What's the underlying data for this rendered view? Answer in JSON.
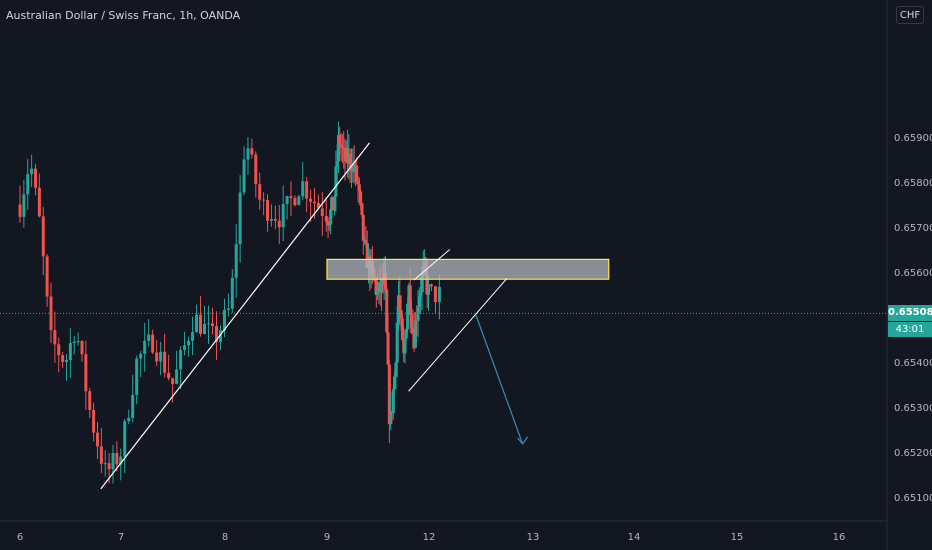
{
  "window": {
    "title": "Australian Dollar / Swiss Franc, 1h, OANDA",
    "currency_button": "CHF"
  },
  "price_axis": {
    "current_price": "0.65508",
    "countdown": "43:01"
  },
  "colors": {
    "background": "#131722",
    "up": "#26a69a",
    "down": "#ef5350",
    "drawing_line": "#ffffff",
    "zone_fill": "#b2b5be",
    "zone_border": "#ffeb3b",
    "arrow": "#3d8bb6",
    "axis_text": "#b2b5be"
  },
  "chart_data": {
    "type": "candlestick",
    "title": "Australian Dollar / Swiss Franc, 1h, OANDA",
    "y_ticks": [
      0.651,
      0.652,
      0.653,
      0.654,
      0.655,
      0.656,
      0.657,
      0.658,
      0.659
    ],
    "y_tick_labels": [
      "0.65100",
      "0.65200",
      "0.65300",
      "0.65400",
      "0.65500",
      "0.65600",
      "0.65700",
      "0.65800",
      "0.65900"
    ],
    "x_ticks": [
      6,
      7,
      8,
      9,
      12,
      13,
      14,
      15,
      16
    ],
    "x_tick_labels": [
      "6",
      "7",
      "8",
      "9",
      "12",
      "13",
      "14",
      "15",
      "16"
    ],
    "x_domain": [
      6,
      16
    ],
    "ylim": [
      0.6504,
      0.66
    ],
    "grid": false,
    "price_waypoints": [
      [
        6.0,
        0.6575
      ],
      [
        6.1,
        0.6585
      ],
      [
        6.2,
        0.657
      ],
      [
        6.3,
        0.6545
      ],
      [
        6.45,
        0.654
      ],
      [
        6.55,
        0.6548
      ],
      [
        6.7,
        0.6528
      ],
      [
        6.85,
        0.6515
      ],
      [
        7.0,
        0.652
      ],
      [
        7.15,
        0.654
      ],
      [
        7.3,
        0.6545
      ],
      [
        7.5,
        0.6535
      ],
      [
        7.7,
        0.655
      ],
      [
        7.9,
        0.6545
      ],
      [
        8.05,
        0.6552
      ],
      [
        8.2,
        0.659
      ],
      [
        8.35,
        0.6575
      ],
      [
        8.55,
        0.6572
      ],
      [
        8.75,
        0.658
      ],
      [
        8.9,
        0.6575
      ],
      [
        9.05,
        0.6572
      ],
      [
        9.2,
        0.6575
      ],
      [
        9.35,
        0.659
      ],
      [
        9.5,
        0.6585
      ],
      [
        9.7,
        0.6585
      ],
      [
        9.9,
        0.658
      ],
      [
        10.1,
        0.6565
      ],
      [
        10.3,
        0.656
      ],
      [
        10.5,
        0.6555
      ],
      [
        10.7,
        0.6558
      ],
      [
        10.85,
        0.6525
      ],
      [
        11.0,
        0.6538
      ],
      [
        11.1,
        0.6555
      ],
      [
        11.25,
        0.654
      ],
      [
        11.4,
        0.6557
      ],
      [
        11.55,
        0.6545
      ],
      [
        11.7,
        0.6555
      ],
      [
        11.85,
        0.656
      ],
      [
        12.0,
        0.6555
      ]
    ],
    "drawings": {
      "resistance_zone": {
        "x_start": 9.0,
        "x_end": 13.75,
        "price_low": 0.65584,
        "price_high": 0.65628
      },
      "trendline": {
        "x_start": 6.8,
        "price_start": 0.65118,
        "x_end": 10.25,
        "price_end": 0.65887
      },
      "channel_upper": {
        "x_start": 11.55,
        "price_start": 0.65582,
        "x_end": 12.2,
        "price_end": 0.6565
      },
      "channel_lower": {
        "x_start": 11.4,
        "price_start": 0.65335,
        "x_end": 12.75,
        "price_end": 0.65586
      },
      "projection_arrow": {
        "x_start": 12.45,
        "price_start": 0.65505,
        "x_end": 12.9,
        "price_end": 0.65218
      }
    }
  }
}
